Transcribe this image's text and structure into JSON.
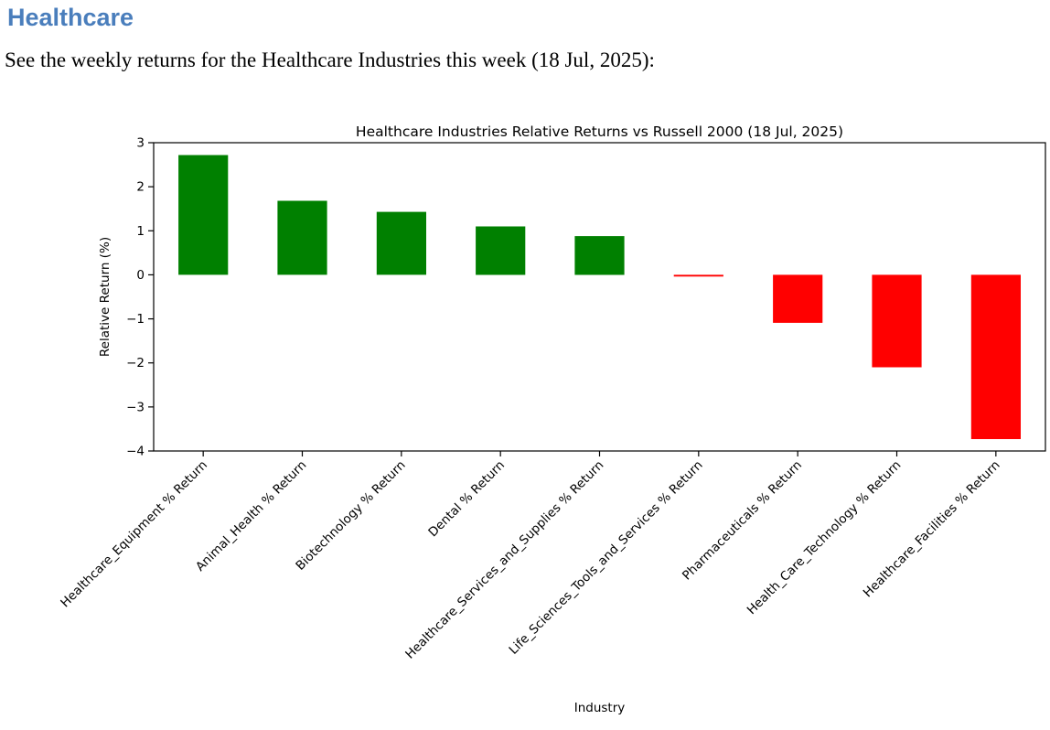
{
  "page": {
    "heading": "Healthcare",
    "subtitle": "See the weekly returns for the Healthcare Industries this week (18 Jul, 2025):"
  },
  "colors": {
    "heading_text": "#4a7ebc",
    "body_text": "#000000",
    "axis": "#000000",
    "background": "#ffffff"
  },
  "chart_data": {
    "type": "bar",
    "title": "Healthcare Industries Relative Returns vs Russell 2000 (18 Jul, 2025)",
    "xlabel": "Industry",
    "ylabel": "Relative Return (%)",
    "ylim": [
      -4,
      3
    ],
    "yticks": [
      3,
      2,
      1,
      0,
      -1,
      -2,
      -3,
      -4
    ],
    "grid": false,
    "bar_width_fraction": 0.5,
    "positive_color": "#008000",
    "negative_color": "#ff0000",
    "categories": [
      "Healthcare_Equipment % Return",
      "Animal_Health % Return",
      "Biotechnology % Return",
      "Dental % Return",
      "Healthcare_Services_and_Supplies % Return",
      "Life_Sciences_Tools_and_Services % Return",
      "Pharmaceuticals % Return",
      "Health_Care_Technology % Return",
      "Healthcare_Facilities % Return"
    ],
    "values": [
      2.72,
      1.68,
      1.43,
      1.1,
      0.88,
      -0.04,
      -1.09,
      -2.1,
      -3.73
    ]
  }
}
